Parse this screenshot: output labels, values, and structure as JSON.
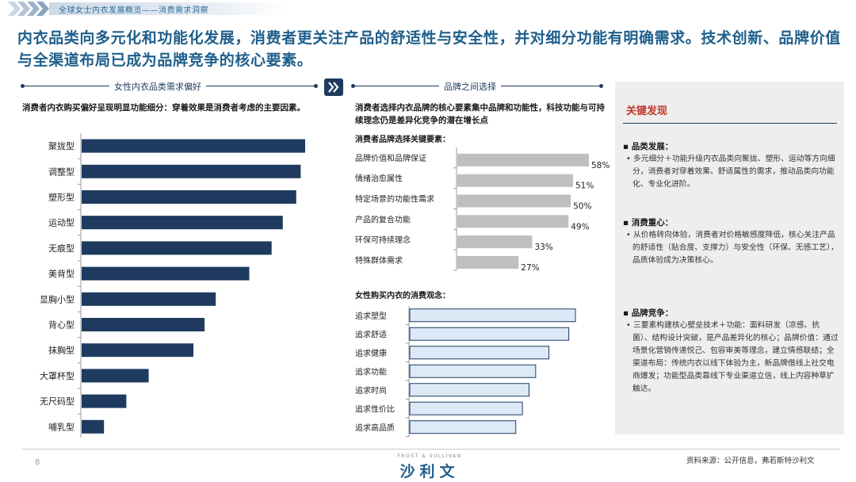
{
  "header": {
    "breadcrumb": "全球女士内衣发展概览——消费需求洞察"
  },
  "headline": "内衣品类向多元化和功能化发展，消费者更关注产品的舒适性与安全性，并对细分功能有明确需求。技术创新、品牌价值与全渠道布局已成为品牌竞争的核心要素。",
  "left_section": {
    "title": "女性内衣品类需求偏好",
    "subtitle": "消费者内衣购买偏好呈现明显功能细分：穿着效果是消费者考虑的主要因素。"
  },
  "middle_section": {
    "title": "品牌之间选择",
    "subtitle": "消费者选择内衣品牌的核心要素集中品牌和功能性，科技功能与可持续理念仍是差异化竞争的潜在增长点",
    "chart1_title": "消费者品牌选择关键要素：",
    "chart2_title": "女性购买内衣的消费观念："
  },
  "chart_data": [
    {
      "type": "bar",
      "orientation": "horizontal",
      "categories": [
        "聚拢型",
        "调整型",
        "塑形型",
        "运动型",
        "无痕型",
        "美背型",
        "显胸小型",
        "背心型",
        "抹胸型",
        "大罩杯型",
        "无尺码型",
        "哺乳型"
      ],
      "values": [
        100,
        98,
        96,
        90,
        85,
        75,
        60,
        55,
        50,
        30,
        20,
        10
      ],
      "color": "#1e3a5f"
    },
    {
      "type": "bar",
      "orientation": "horizontal",
      "title": "消费者品牌选择关键要素：",
      "categories": [
        "品牌价值和品牌保证",
        "情绪治愈属性",
        "特定场景的功能性需求",
        "产品的复合功能",
        "环保可持续理念",
        "特殊群体需求"
      ],
      "values": [
        58,
        51,
        50,
        49,
        33,
        27
      ],
      "value_labels": [
        "58%",
        "51%",
        "50%",
        "49%",
        "33%",
        "27%"
      ],
      "color": "#bfbfbf"
    },
    {
      "type": "bar",
      "orientation": "horizontal",
      "title": "女性购买内衣的消费观念：",
      "categories": [
        "追求塑型",
        "追求舒适",
        "追求健康",
        "追求功能",
        "追求时尚",
        "追求性价比",
        "追求高品质"
      ],
      "values": [
        100,
        96,
        84,
        76,
        72,
        68,
        64
      ],
      "color": "#dde9f7",
      "stroke": "#1e3a5f"
    }
  ],
  "sidebar": {
    "title": "关键发现",
    "findings": [
      {
        "head": "品类发展：",
        "text": "多元细分＋功能升级内衣品类向聚拢、塑形、运动等方向细分，消费者对穿着效果、舒适属性的需求，推动品类向功能化、专业化进阶。"
      },
      {
        "head": "消费重心：",
        "text": "从价格转向体验，消费者对价格敏感度降低，核心关注产品的舒适性（贴合度、支撑力）与安全性（环保、无感工艺），品质体验成为决策核心。"
      },
      {
        "head": "品牌竞争：",
        "text": "三要素构建核心壁垒技术＋功能：面料研发（凉感、抗菌）、结构设计突破，是产品差异化的核心；品牌价值：通过场景化营销传递悦己、包容审美等理念，建立情感联结；全渠道布局：传统内衣以线下体验为主，新品牌借线上社交电商爆发；功能型品类靠线下专业渠道立信，线上内容种草扩触达。"
      }
    ]
  },
  "footer": {
    "page_number": "8",
    "logo_caption": "FROST & SULLIVAN",
    "logo_text": "沙利文",
    "source": "资料来源：公开信息，弗若斯特沙利文"
  }
}
